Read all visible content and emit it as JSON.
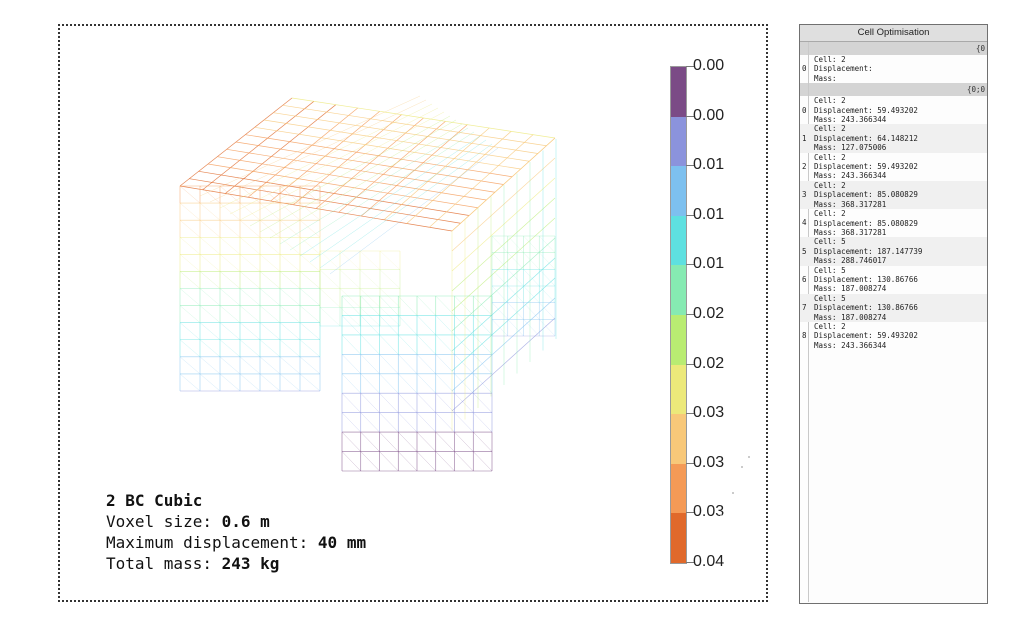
{
  "viewport": {
    "title": "2 BC Cubic",
    "voxel_label": "Voxel size: ",
    "voxel_value": "0.6 m",
    "displacement_label": "Maximum displacement: ",
    "displacement_value": "40 mm",
    "mass_label": "Total mass: ",
    "mass_value": "243 kg"
  },
  "legend": {
    "labels": [
      "0.00",
      "0.00",
      "0.01",
      "0.01",
      "0.01",
      "0.02",
      "0.02",
      "0.03",
      "0.03",
      "0.03",
      "0.04"
    ],
    "colors": [
      "#7b4b86",
      "#8b93dc",
      "#7dc0ef",
      "#5ee0e0",
      "#86eab2",
      "#b9ec72",
      "#ece97a",
      "#f8c879",
      "#f49a56",
      "#e0692b"
    ]
  },
  "panel": {
    "title": "Cell Optimisation",
    "path1": "{0",
    "path2": "{0;0",
    "first_item": {
      "index": "0",
      "lines": [
        "Cell: 2",
        "Displacement:",
        "Mass:"
      ]
    },
    "items": [
      {
        "index": "0",
        "lines": [
          "Cell: 2",
          "Displacement: 59.493202",
          "Mass: 243.366344"
        ]
      },
      {
        "index": "1",
        "lines": [
          "Cell: 2",
          "Displacement: 64.148212",
          "Mass: 127.075006"
        ]
      },
      {
        "index": "2",
        "lines": [
          "Cell: 2",
          "Displacement: 59.493202",
          "Mass: 243.366344"
        ]
      },
      {
        "index": "3",
        "lines": [
          "Cell: 2",
          "Displacement: 85.080829",
          "Mass: 368.317281"
        ]
      },
      {
        "index": "4",
        "lines": [
          "Cell: 2",
          "Displacement: 85.080829",
          "Mass: 368.317281"
        ]
      },
      {
        "index": "5",
        "lines": [
          "Cell: 5",
          "Displacement: 187.147739",
          "Mass: 288.746017"
        ]
      },
      {
        "index": "6",
        "lines": [
          "Cell: 5",
          "Displacement: 130.86766",
          "Mass: 187.008274"
        ]
      },
      {
        "index": "7",
        "lines": [
          "Cell: 5",
          "Displacement: 130.86766",
          "Mass: 187.008274"
        ]
      },
      {
        "index": "8",
        "lines": [
          "Cell: 2",
          "Displacement: 59.493202",
          "Mass: 243.366344"
        ]
      }
    ]
  }
}
